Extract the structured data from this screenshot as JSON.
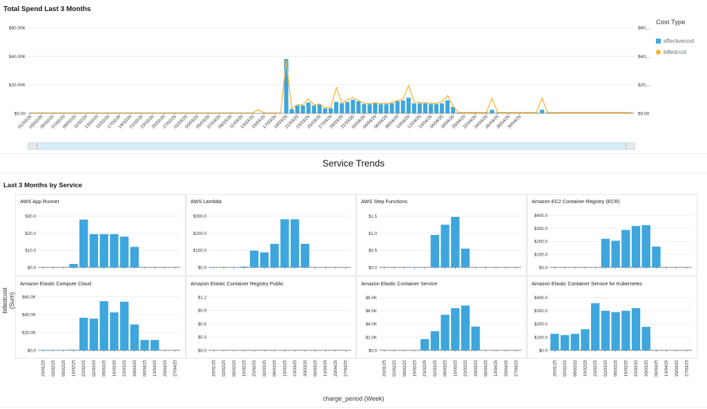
{
  "header": {
    "title": "Total Spend Last 3 Months",
    "legend_title": "Cost Type",
    "legend_items": [
      "effectivecost",
      "billedcost"
    ]
  },
  "section": {
    "title": "Service Trends",
    "subtitle": "Last 3 Months by Service"
  },
  "axes": {
    "y_title": "billedcost (Sum)",
    "x_title": "charge_period (Week)"
  },
  "colors": {
    "bar": "#3ea6dc",
    "line": "#f5b433",
    "grid": "#e9ebed",
    "scrollbar": "#d9edf7"
  },
  "chart_data": [
    {
      "type": "bar",
      "title": "Total Spend Last 3 Months",
      "ylim": [
        0,
        60000
      ],
      "y_ticks": [
        "$0.00",
        "$20.00K",
        "$40.00K",
        "$60.00K"
      ],
      "y_ticks_right": [
        "$0.00",
        "$20,...",
        "$40,...",
        "$60,..."
      ],
      "x_tick_labels": [
        "01/02/25",
        "03/02/25",
        "05/02/25",
        "07/02/25",
        "09/02/25",
        "11/02/25",
        "13/02/25",
        "15/02/25",
        "17/02/25",
        "19/02/25",
        "21/02/25",
        "23/02/25",
        "25/02/25",
        "27/02/25",
        "01/03/25",
        "03/03/25",
        "05/03/25",
        "07/03/25",
        "09/03/25",
        "11/03/25",
        "13/03/25",
        "15/03/25",
        "17/03/25",
        "19/03/25",
        "21/03/25",
        "23/03/25",
        "25/03/25",
        "27/03/25",
        "29/03/25",
        "31/03/25",
        "02/04/25",
        "04/04/25",
        "06/04/25",
        "08/04/25",
        "10/04/25",
        "12/04/25",
        "14/04/25",
        "16/04/25",
        "18/04/25",
        "20/04/25",
        "22/04/25",
        "24/04/25",
        "26/04/25",
        "28/04/25",
        "30/04/25"
      ],
      "series": [
        {
          "name": "effectivecost",
          "kind": "bar",
          "values": [
            200,
            200,
            200,
            200,
            200,
            200,
            200,
            200,
            200,
            200,
            200,
            200,
            200,
            200,
            200,
            200,
            200,
            200,
            200,
            200,
            200,
            200,
            200,
            200,
            200,
            200,
            200,
            200,
            200,
            200,
            200,
            200,
            200,
            200,
            200,
            200,
            200,
            200,
            200,
            200,
            200,
            200,
            200,
            200,
            200,
            200,
            38000,
            3000,
            5500,
            5500,
            7500,
            5500,
            6000,
            3500,
            3500,
            8000,
            7000,
            8000,
            9500,
            8500,
            6500,
            6500,
            7000,
            6500,
            6500,
            7000,
            8500,
            9000,
            11000,
            7000,
            7000,
            7000,
            6500,
            6500,
            7000,
            9000,
            4500,
            500,
            500,
            500,
            500,
            500,
            500,
            2500,
            500,
            500,
            500,
            500,
            500,
            500,
            500,
            500,
            2500,
            500,
            500,
            500,
            500,
            500,
            500,
            500,
            500,
            500,
            500,
            500,
            500,
            500,
            500,
            500,
            500
          ]
        },
        {
          "name": "billedcost",
          "kind": "line",
          "values": [
            300,
            300,
            300,
            300,
            300,
            300,
            300,
            300,
            300,
            300,
            300,
            300,
            300,
            300,
            300,
            300,
            300,
            300,
            300,
            300,
            300,
            300,
            300,
            300,
            300,
            300,
            300,
            300,
            300,
            300,
            300,
            300,
            300,
            300,
            300,
            300,
            300,
            300,
            300,
            300,
            300,
            2500,
            300,
            300,
            300,
            300,
            37000,
            3500,
            6000,
            6000,
            10000,
            6000,
            6500,
            4000,
            4000,
            18000,
            7000,
            9500,
            11000,
            9000,
            7000,
            7000,
            7500,
            7000,
            7000,
            7500,
            9000,
            10000,
            19500,
            8000,
            7500,
            7500,
            7000,
            7000,
            8000,
            12500,
            5000,
            600,
            600,
            600,
            600,
            600,
            600,
            10500,
            600,
            600,
            600,
            600,
            600,
            600,
            600,
            600,
            10500,
            600,
            600,
            600,
            600,
            600,
            600,
            600,
            600,
            600,
            600,
            600,
            600,
            600,
            600,
            600,
            600
          ]
        }
      ]
    },
    {
      "type": "bar",
      "title": "AWS App Runner",
      "ylim": [
        0,
        32
      ],
      "y_ticks": [
        "$0.0",
        "$10.0",
        "$20.0",
        "$30.0"
      ],
      "y_tick_values": [
        0,
        10,
        20,
        30
      ],
      "values": [
        0,
        0,
        0,
        2,
        28,
        19.5,
        19.5,
        19.5,
        18,
        12,
        0,
        0,
        0,
        0
      ]
    },
    {
      "type": "bar",
      "title": "AWS Lambda",
      "ylim": [
        0,
        320
      ],
      "y_ticks": [
        "$0.0",
        "$100.0",
        "$200.0",
        "$300.0"
      ],
      "y_tick_values": [
        0,
        100,
        200,
        300
      ],
      "values": [
        2,
        0,
        2,
        4,
        98,
        88,
        138,
        282,
        282,
        138,
        0,
        0,
        0,
        0
      ]
    },
    {
      "type": "bar",
      "title": "AWS Step Functions",
      "ylim": [
        0,
        1.6
      ],
      "y_ticks": [
        "$0.0",
        "$0.5",
        "$1.0",
        "$1.5"
      ],
      "y_tick_values": [
        0,
        0.5,
        1,
        1.5
      ],
      "values": [
        0,
        0,
        0,
        0.01,
        0,
        0.95,
        1.25,
        1.48,
        0.55,
        0,
        0,
        0,
        0,
        0
      ]
    },
    {
      "type": "bar",
      "title": "Amazon EC2 Container Registry (ECR)",
      "ylim": [
        0,
        420
      ],
      "y_ticks": [
        "$0.0",
        "$100.0",
        "$200.0",
        "$300.0",
        "$400.0"
      ],
      "y_tick_values": [
        0,
        100,
        200,
        300,
        400
      ],
      "values": [
        0,
        0,
        0,
        0,
        0,
        220,
        205,
        288,
        318,
        325,
        160,
        0,
        0,
        0
      ]
    },
    {
      "type": "bar",
      "title": "Amazon Elastic Compute Cloud",
      "ylim": [
        0,
        62000
      ],
      "y_ticks": [
        "$0.0",
        "$20.0K",
        "$40.0K",
        "$60.0K"
      ],
      "y_tick_values": [
        0,
        20000,
        40000,
        60000
      ],
      "values": [
        200,
        200,
        200,
        600,
        36500,
        35500,
        55000,
        42500,
        54500,
        29000,
        11500,
        11500,
        0,
        0
      ]
    },
    {
      "type": "bar",
      "title": "Amazon Elastic Container Registry Public",
      "ylim": [
        0,
        1.25
      ],
      "y_ticks": [
        "$0.0",
        "$0.3",
        "$0.6",
        "$0.9",
        "$1.2"
      ],
      "y_tick_values": [
        0,
        0.3,
        0.6,
        0.9,
        1.2
      ],
      "values": [
        0,
        0,
        0,
        0,
        0,
        0,
        0,
        0,
        0,
        0,
        0,
        0,
        0,
        0
      ]
    },
    {
      "type": "bar",
      "title": "Amazon Elastic Container Service",
      "ylim": [
        0,
        8400
      ],
      "y_ticks": [
        "$0.0",
        "$2.0K",
        "$4.0K",
        "$6.0K",
        "$8.0K"
      ],
      "y_tick_values": [
        0,
        2000,
        4000,
        6000,
        8000
      ],
      "values": [
        0,
        0,
        0,
        0,
        1700,
        2900,
        5400,
        6400,
        6800,
        3600,
        0,
        0,
        0,
        0
      ]
    },
    {
      "type": "bar",
      "title": "Amazon Elastic Container Service for Kubernetes",
      "ylim": [
        0,
        420
      ],
      "y_ticks": [
        "$0.0",
        "$100.0",
        "$200.0",
        "$300.0",
        "$400.0"
      ],
      "y_tick_values": [
        0,
        100,
        200,
        300,
        400
      ],
      "values": [
        125,
        115,
        125,
        160,
        358,
        300,
        290,
        300,
        320,
        178,
        0,
        0,
        0,
        0
      ]
    }
  ],
  "week_labels": [
    "26/01/25",
    "02/02/25",
    "09/02/25",
    "16/02/25",
    "23/02/25",
    "02/03/25",
    "09/03/25",
    "16/03/25",
    "23/03/25",
    "30/03/25",
    "06/04/25",
    "13/04/25",
    "20/04/25",
    "27/04/25"
  ]
}
